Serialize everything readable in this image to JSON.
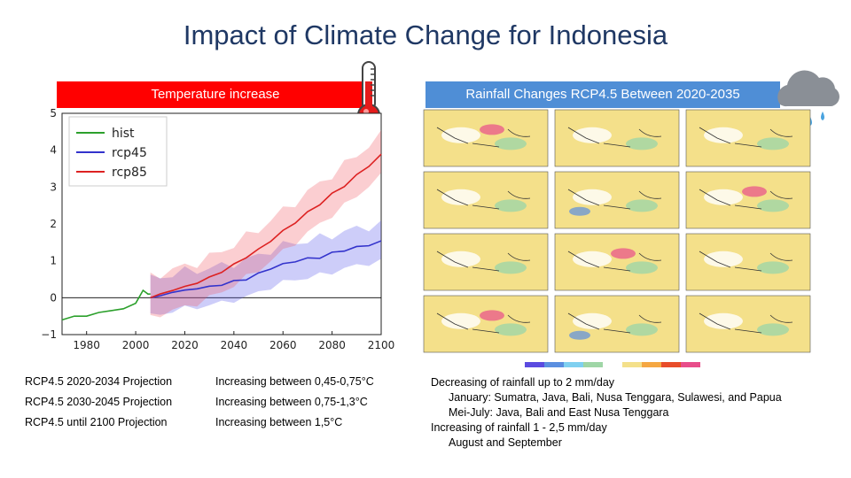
{
  "title": "Impact of Climate Change for Indonesia",
  "left_banner": "Temperature increase",
  "right_banner": "Rainfall Changes RCP4.5 Between 2020-2035",
  "icons": [
    "thermometer-icon",
    "rain-cloud-icon"
  ],
  "chart_data": {
    "type": "line",
    "title": "",
    "xlabel": "",
    "ylabel": "",
    "xlim": [
      1970,
      2100
    ],
    "ylim": [
      -1,
      5
    ],
    "xticks": [
      "1980",
      "2000",
      "2020",
      "2040",
      "2060",
      "2080",
      "2100"
    ],
    "yticks": [
      "−1",
      "0",
      "1",
      "2",
      "3",
      "4",
      "5"
    ],
    "legend": [
      "hist",
      "rcp45",
      "rcp85"
    ],
    "series": [
      {
        "name": "hist",
        "color": "#2ca02c",
        "x": [
          1970,
          1975,
          1980,
          1985,
          1990,
          1995,
          2000,
          2003,
          2005,
          2006
        ],
        "y": [
          -0.6,
          -0.5,
          -0.5,
          -0.4,
          -0.35,
          -0.3,
          -0.15,
          0.2,
          0.1,
          0.1
        ]
      },
      {
        "name": "rcp45",
        "color": "#3333cc",
        "x": [
          2006,
          2010,
          2015,
          2020,
          2025,
          2030,
          2035,
          2040,
          2045,
          2050,
          2055,
          2060,
          2065,
          2070,
          2075,
          2080,
          2085,
          2090,
          2095,
          2100
        ],
        "y": [
          0.0,
          0.05,
          0.15,
          0.2,
          0.25,
          0.3,
          0.35,
          0.45,
          0.5,
          0.65,
          0.8,
          0.9,
          1.0,
          1.05,
          1.1,
          1.2,
          1.3,
          1.35,
          1.45,
          1.5
        ]
      },
      {
        "name": "rcp85",
        "color": "#dd2222",
        "x": [
          2006,
          2010,
          2015,
          2020,
          2025,
          2030,
          2035,
          2040,
          2045,
          2050,
          2055,
          2060,
          2065,
          2070,
          2075,
          2080,
          2085,
          2090,
          2095,
          2100
        ],
        "y": [
          0.0,
          0.1,
          0.2,
          0.3,
          0.4,
          0.55,
          0.7,
          0.9,
          1.1,
          1.3,
          1.55,
          1.8,
          2.05,
          2.3,
          2.55,
          2.8,
          3.05,
          3.3,
          3.6,
          3.85
        ]
      }
    ],
    "band_halfwidth": {
      "rcp45": 0.5,
      "rcp85": 0.55
    }
  },
  "projections": [
    {
      "label": "RCP4.5 2020-2034  Projection",
      "value": "Increasing between 0,45-0,75°C"
    },
    {
      "label": "RCP4.5 2030-2045 Projection",
      "value": "Increasing between 0,75-1,3°C"
    },
    {
      "label": "RCP4.5 until 2100 Projection",
      "value": " Increasing between 1,5°C"
    }
  ],
  "rainfall_notes": {
    "decrease": "Decreasing of rainfall up to 2 mm/day",
    "decrease_l1": "January: Sumatra, Java, Bali, Nusa Tenggara, Sulawesi, and Papua",
    "decrease_l2": "Mei-July: Java, Bali and East Nusa Tenggara",
    "increase": "Increasing of rainfall 1 - 2,5 mm/day",
    "increase_l1": "August and September"
  },
  "colors": {
    "title": "#1f3864",
    "red_banner": "#ff0000",
    "blue_banner": "#4f8ed6"
  }
}
